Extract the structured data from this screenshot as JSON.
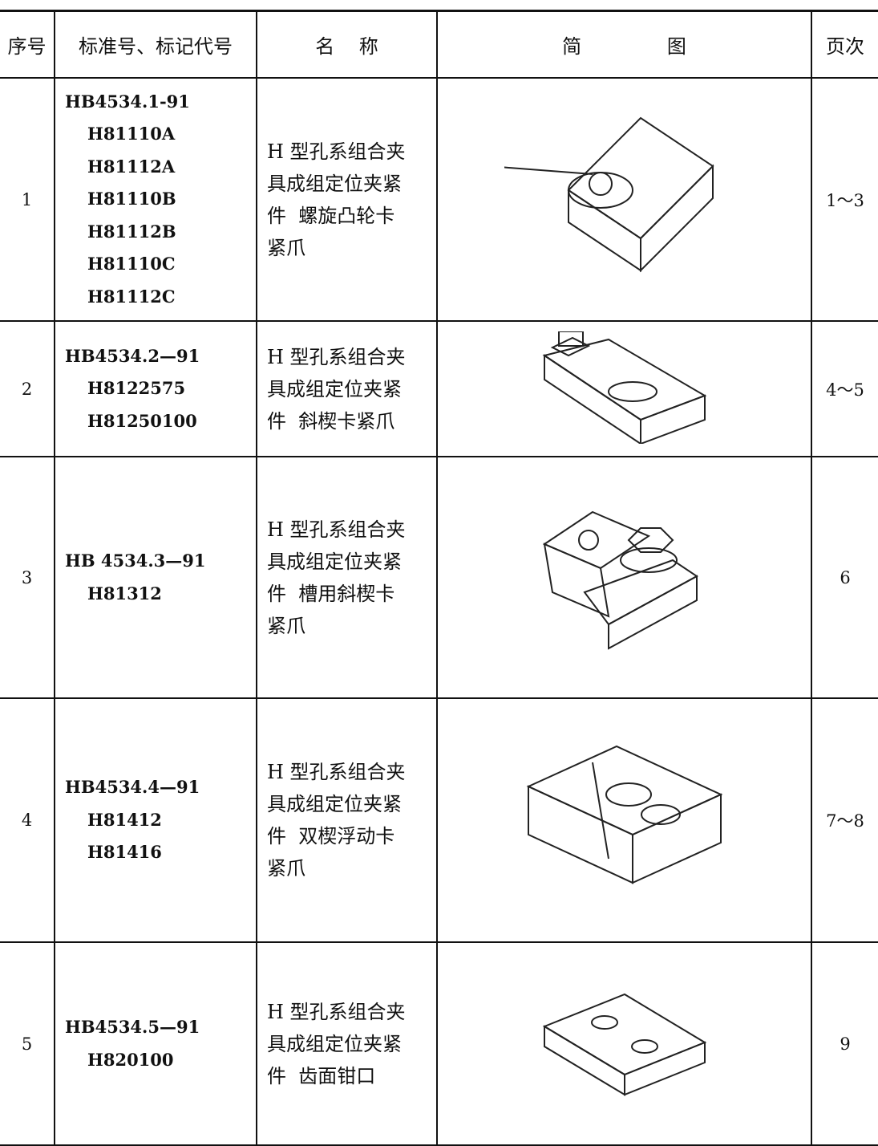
{
  "table": {
    "header": [
      "序号",
      "标准号、标记代号",
      "名    称",
      "简              图",
      "页次"
    ],
    "rows": [
      {
        "no": "1",
        "codes": [
          "HB4534.1-91",
          "H81110A",
          "H81112A",
          "H81110B",
          "H81112B",
          "H81110C",
          "H81112C"
        ],
        "name": [
          "H 型孔系组合夹",
          "具成组定位夹紧",
          "件  螺旋凸轮卡",
          "紧爪"
        ],
        "pages": "1～3"
      },
      {
        "no": "2",
        "codes": [
          "HB4534.2—91",
          "H8122575",
          "H81250100"
        ],
        "name": [
          "H 型孔系组合夹",
          "具成组定位夹紧",
          "件  斜楔卡紧爪"
        ],
        "pages": "4～5"
      },
      {
        "no": "3",
        "codes": [
          "HB 4534.3—91",
          "H81312"
        ],
        "name": [
          "H 型孔系组合夹",
          "具成组定位夹紧",
          "件  槽用斜楔卡",
          "紧爪"
        ],
        "pages": "6"
      },
      {
        "no": "4",
        "codes": [
          "HB4534.4—91",
          "H81412",
          "H81416"
        ],
        "name": [
          "H 型孔系组合夹",
          "具成组定位夹紧",
          "件  双楔浮动卡",
          "紧爪"
        ],
        "pages": "7～8"
      },
      {
        "no": "5",
        "codes": [
          "HB4534.5—91",
          "H820100"
        ],
        "name": [
          "H 型孔系组合夹",
          "具成组定位夹紧",
          "件  齿面钳口"
        ],
        "pages": "9"
      }
    ]
  }
}
